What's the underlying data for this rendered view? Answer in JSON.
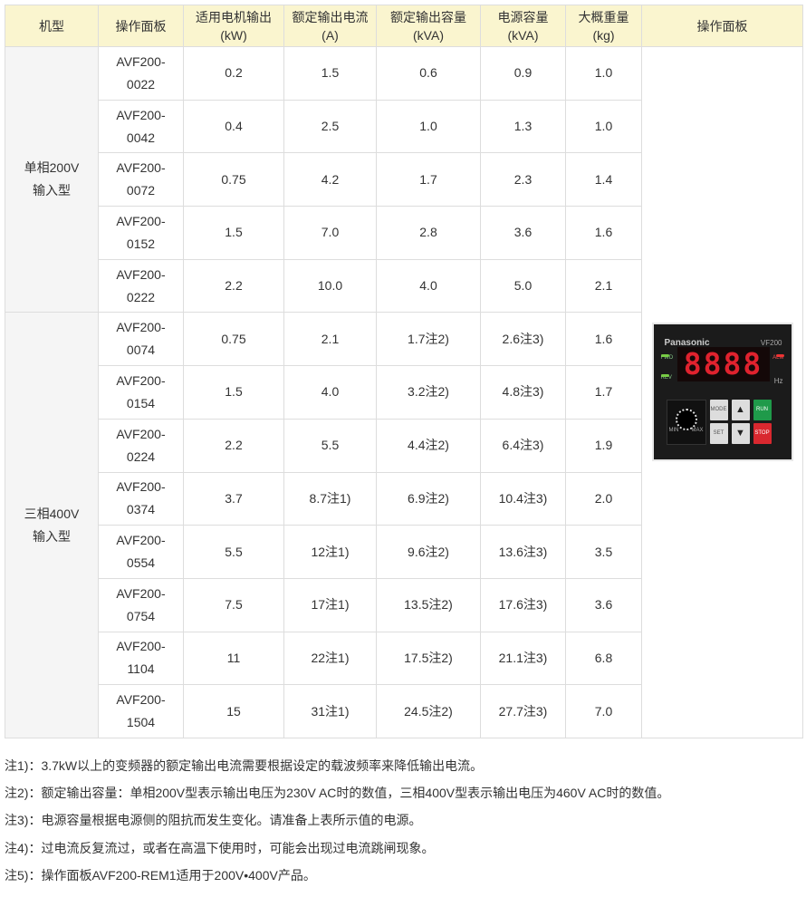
{
  "headers": [
    "机型",
    "操作面板",
    "适用电机输出(kW)",
    "额定输出电流(A)",
    "额定输出容量(kVA)",
    "电源容量(kVA)",
    "大概重量(kg)",
    "操作面板"
  ],
  "groups": [
    {
      "label": "单相200V输入型",
      "rows": [
        {
          "model": "AVF200-0022",
          "kw": "0.2",
          "amp": "1.5",
          "kva": "0.6",
          "power": "0.9",
          "kg": "1.0"
        },
        {
          "model": "AVF200-0042",
          "kw": "0.4",
          "amp": "2.5",
          "kva": "1.0",
          "power": "1.3",
          "kg": "1.0"
        },
        {
          "model": "AVF200-0072",
          "kw": "0.75",
          "amp": "4.2",
          "kva": "1.7",
          "power": "2.3",
          "kg": "1.4"
        },
        {
          "model": "AVF200-0152",
          "kw": "1.5",
          "amp": "7.0",
          "kva": "2.8",
          "power": "3.6",
          "kg": "1.6"
        },
        {
          "model": "AVF200-0222",
          "kw": "2.2",
          "amp": "10.0",
          "kva": "4.0",
          "power": "5.0",
          "kg": "2.1"
        }
      ]
    },
    {
      "label": "三相400V输入型",
      "rows": [
        {
          "model": "AVF200-0074",
          "kw": "0.75",
          "amp": "2.1",
          "kva": "1.7注2)",
          "power": "2.6注3)",
          "kg": "1.6"
        },
        {
          "model": "AVF200-0154",
          "kw": "1.5",
          "amp": "4.0",
          "kva": "3.2注2)",
          "power": "4.8注3)",
          "kg": "1.7"
        },
        {
          "model": "AVF200-0224",
          "kw": "2.2",
          "amp": "5.5",
          "kva": "4.4注2)",
          "power": "6.4注3)",
          "kg": "1.9"
        },
        {
          "model": "AVF200-0374",
          "kw": "3.7",
          "amp": "8.7注1)",
          "kva": "6.9注2)",
          "power": "10.4注3)",
          "kg": "2.0"
        },
        {
          "model": "AVF200-0554",
          "kw": "5.5",
          "amp": "12注1)",
          "kva": "9.6注2)",
          "power": "13.6注3)",
          "kg": "3.5"
        },
        {
          "model": "AVF200-0754",
          "kw": "7.5",
          "amp": "17注1)",
          "kva": "13.5注2)",
          "power": "17.6注3)",
          "kg": "3.6"
        },
        {
          "model": "AVF200-1104",
          "kw": "11",
          "amp": "22注1)",
          "kva": "17.5注2)",
          "power": "21.1注3)",
          "kg": "6.8"
        },
        {
          "model": "AVF200-1504",
          "kw": "15",
          "amp": "31注1)",
          "kva": "24.5注2)",
          "power": "27.7注3)",
          "kg": "7.0"
        }
      ]
    }
  ],
  "panel": {
    "brand": "Panasonic",
    "model": "VF200",
    "display": "8888",
    "fwd": "FWD",
    "rev": "REV",
    "alm": "ALM",
    "hz": "Hz",
    "mode": "MODE",
    "set": "SET",
    "up": "▲",
    "down": "▼",
    "run": "RUN",
    "stop": "STOP",
    "min": "MIN",
    "max": "MAX"
  },
  "notes": [
    "注1)：3.7kW以上的变频器的额定输出电流需要根据设定的载波频率来降低输出电流。",
    "注2)：额定输出容量：单相200V型表示输出电压为230V AC时的数值，三相400V型表示输出电压为460V AC时的数值。",
    "注3)：电源容量根据电源侧的阻抗而发生变化。请准备上表所示值的电源。",
    "注4)：过电流反复流过，或者在高温下使用时，可能会出现过电流跳闸现象。",
    "注5)：操作面板AVF200-REM1适用于200V•400V产品。"
  ],
  "colors": {
    "header_bg": "#faf5cf",
    "group_bg": "#f5f5f5",
    "border": "#dddddd",
    "run": "#1f9a4a",
    "stop": "#d9282f",
    "display": "#e0222e"
  }
}
